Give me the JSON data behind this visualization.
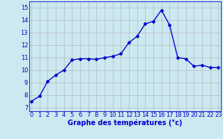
{
  "x": [
    0,
    1,
    2,
    3,
    4,
    5,
    6,
    7,
    8,
    9,
    10,
    11,
    12,
    13,
    14,
    15,
    16,
    17,
    18,
    19,
    20,
    21,
    22,
    23
  ],
  "y": [
    7.5,
    7.9,
    9.1,
    9.6,
    10.0,
    10.8,
    10.9,
    10.9,
    10.85,
    11.0,
    11.1,
    11.3,
    12.2,
    12.7,
    13.7,
    13.9,
    14.8,
    13.6,
    11.0,
    10.9,
    10.3,
    10.4,
    10.2,
    10.2
  ],
  "line_color": "#0000cc",
  "marker": "D",
  "markersize": 2.5,
  "linewidth": 1.0,
  "xlabel": "Graphe des températures (°c)",
  "ylabel_ticks": [
    7,
    8,
    9,
    10,
    11,
    12,
    13,
    14,
    15
  ],
  "xlim": [
    -0.3,
    23.3
  ],
  "ylim": [
    6.7,
    15.5
  ],
  "xticks": [
    0,
    1,
    2,
    3,
    4,
    5,
    6,
    7,
    8,
    9,
    10,
    11,
    12,
    13,
    14,
    15,
    16,
    17,
    18,
    19,
    20,
    21,
    22,
    23
  ],
  "bg_color": "#cce8f0",
  "grid_color": "#b0b0b0",
  "axis_color": "#0000cc",
  "label_color": "#0000cc",
  "tick_font_size": 6,
  "xlabel_font_size": 7
}
